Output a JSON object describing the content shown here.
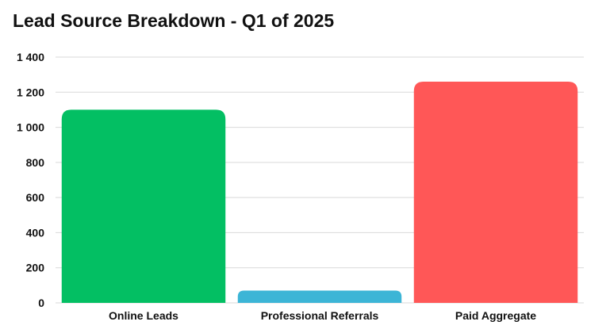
{
  "chart_data": {
    "type": "bar",
    "title": "Lead Source Breakdown - Q1 of 2025",
    "xlabel": "",
    "ylabel": "",
    "categories": [
      "Online Leads",
      "Professional Referrals",
      "Paid Aggregate"
    ],
    "values": [
      1100,
      70,
      1260
    ],
    "colors": [
      "#03bf63",
      "#3cb5d6",
      "#ff5757"
    ],
    "ylim": [
      0,
      1400
    ],
    "yticks": [
      0,
      200,
      400,
      600,
      800,
      1000,
      1200,
      1400
    ],
    "ytick_labels": [
      "0",
      "200",
      "400",
      "600",
      "800",
      "1 000",
      "1 200",
      "1 400"
    ],
    "grid": true,
    "legend": "none"
  }
}
